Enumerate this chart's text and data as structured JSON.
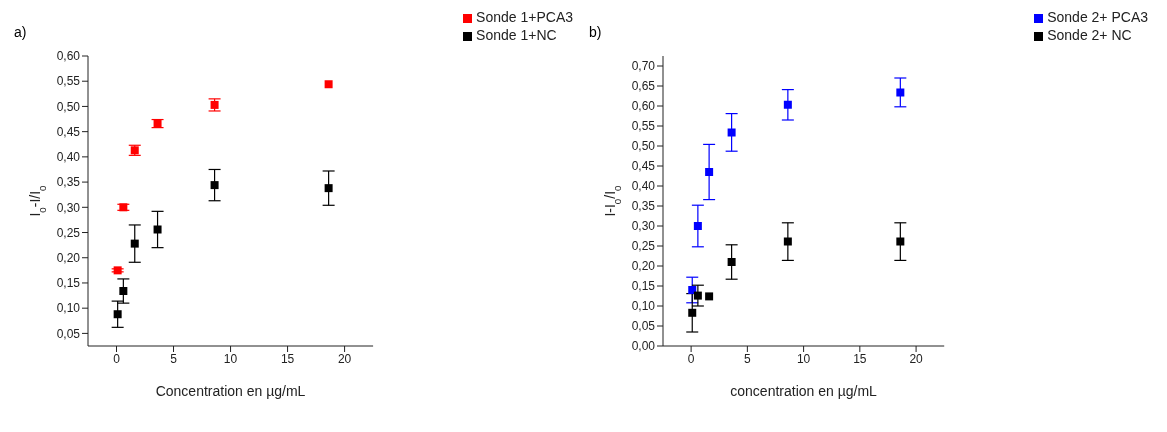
{
  "chart_data": [
    {
      "type": "scatter",
      "title": "a)",
      "xlabel": "Concentration en µg/mL",
      "ylabel": "I$_{0}$-I/I$_{0}$",
      "marker": "square",
      "legend": "top right",
      "grid": false,
      "x": [
        0.1,
        0.6,
        1.6,
        3.6,
        8.6,
        18.6
      ],
      "series": [
        {
          "name": "Sonde 1+PCA3",
          "color": "#ff0000",
          "values": [
            0.175,
            0.3,
            0.413,
            0.466,
            0.503,
            0.544
          ],
          "errors": [
            0.003,
            0.006,
            0.01,
            0.008,
            0.012,
            null
          ]
        },
        {
          "name": "Sonde 1+NC",
          "color": "#000000",
          "values": [
            0.088,
            0.134,
            0.228,
            0.256,
            0.344,
            0.338
          ],
          "errors": [
            0.026,
            0.024,
            0.037,
            0.036,
            0.031,
            0.034
          ]
        }
      ],
      "xlim": [
        -2.5,
        22.5
      ],
      "xticks": [
        0,
        5,
        10,
        15,
        20
      ],
      "ylim": [
        0.025,
        0.6
      ],
      "yticks": [
        {
          "value": 0.05,
          "label": "0,05"
        },
        {
          "value": 0.1,
          "label": "0,10"
        },
        {
          "value": 0.15,
          "label": "0,15"
        },
        {
          "value": 0.2,
          "label": "0,20"
        },
        {
          "value": 0.25,
          "label": "0,25"
        },
        {
          "value": 0.3,
          "label": "0,30"
        },
        {
          "value": 0.35,
          "label": "0,35"
        },
        {
          "value": 0.4,
          "label": "0,40"
        },
        {
          "value": 0.45,
          "label": "0,45"
        },
        {
          "value": 0.5,
          "label": "0,50"
        },
        {
          "value": 0.55,
          "label": "0,55"
        },
        {
          "value": 0.6,
          "label": "0,60"
        }
      ]
    },
    {
      "type": "scatter",
      "title": "b)",
      "xlabel": "concentration en µg/mL",
      "ylabel": "I-I$_{0}$/I$_{0}$",
      "marker": "square",
      "legend": "top right",
      "grid": false,
      "x": [
        0.1,
        0.6,
        1.6,
        3.6,
        8.6,
        18.6
      ],
      "series": [
        {
          "name": "Sonde 2+ PCA3",
          "color": "#0000ff",
          "values": [
            0.14,
            0.3,
            0.435,
            0.534,
            0.603,
            0.634
          ],
          "errors": [
            0.032,
            0.052,
            0.069,
            0.047,
            0.038,
            0.036
          ]
        },
        {
          "name": "Sonde 2+ NC",
          "color": "#000000",
          "values": [
            0.083,
            0.126,
            0.124,
            0.21,
            0.261,
            0.261
          ],
          "errors": [
            0.048,
            0.026,
            null,
            0.043,
            0.047,
            0.047
          ]
        }
      ],
      "xlim": [
        -2.5,
        22.5
      ],
      "xticks": [
        0,
        5,
        10,
        15,
        20
      ],
      "ylim": [
        0,
        0.725
      ],
      "yticks": [
        {
          "value": 0,
          "label": "0,00"
        },
        {
          "value": 0.05,
          "label": "0,05"
        },
        {
          "value": 0.1,
          "label": "0,10"
        },
        {
          "value": 0.15,
          "label": "0,15"
        },
        {
          "value": 0.2,
          "label": "0,20"
        },
        {
          "value": 0.25,
          "label": "0,25"
        },
        {
          "value": 0.3,
          "label": "0,30"
        },
        {
          "value": 0.35,
          "label": "0,35"
        },
        {
          "value": 0.4,
          "label": "0,40"
        },
        {
          "value": 0.45,
          "label": "0,45"
        },
        {
          "value": 0.5,
          "label": "0,50"
        },
        {
          "value": 0.55,
          "label": "0,55"
        },
        {
          "value": 0.6,
          "label": "0,60"
        },
        {
          "value": 0.65,
          "label": "0,65"
        },
        {
          "value": 0.7,
          "label": "0,70"
        }
      ]
    }
  ]
}
